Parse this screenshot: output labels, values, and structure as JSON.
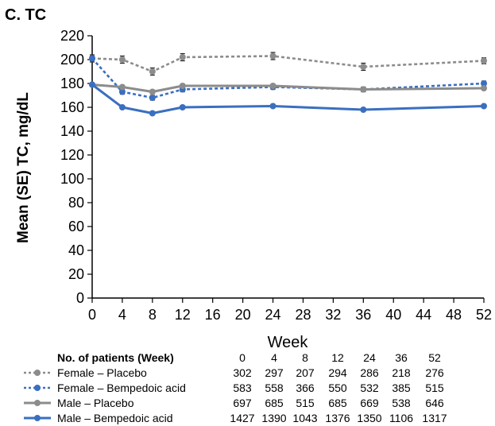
{
  "chart_data": {
    "type": "line",
    "title": "C. TC",
    "xlabel": "Week",
    "ylabel": "Mean (SE) TC, mg/dL",
    "xlim": [
      0,
      52
    ],
    "ylim": [
      0,
      220
    ],
    "xticks": [
      0,
      4,
      8,
      12,
      16,
      20,
      24,
      28,
      32,
      36,
      40,
      44,
      48,
      52
    ],
    "yticks": [
      0,
      20,
      40,
      60,
      80,
      100,
      120,
      140,
      160,
      180,
      200,
      220
    ],
    "grid": false,
    "series": [
      {
        "name": "Female – Placebo",
        "color": "#8c8c8c",
        "dash": "dotted",
        "x": [
          0,
          4,
          8,
          12,
          24,
          36,
          52
        ],
        "y": [
          201,
          200,
          190,
          202,
          203,
          194,
          199
        ],
        "se": [
          3,
          3,
          3,
          3,
          3,
          3,
          2.5
        ]
      },
      {
        "name": "Female – Bempedoic acid",
        "color": "#3a6fc0",
        "dash": "dotted",
        "x": [
          0,
          4,
          8,
          12,
          24,
          36,
          52
        ],
        "y": [
          201,
          173,
          168,
          175,
          177,
          175,
          180
        ],
        "se": [
          2,
          2,
          2,
          2,
          2,
          2,
          2
        ]
      },
      {
        "name": "Male – Placebo",
        "color": "#8c8c8c",
        "dash": "solid",
        "x": [
          0,
          4,
          8,
          12,
          24,
          36,
          52
        ],
        "y": [
          179,
          177,
          173,
          178,
          178,
          175,
          176
        ],
        "se": [
          1.5,
          1.5,
          1.5,
          1.5,
          1.5,
          1.5,
          1.5
        ]
      },
      {
        "name": "Male – Bempedoic acid",
        "color": "#3a6fc0",
        "dash": "solid",
        "x": [
          0,
          4,
          8,
          12,
          24,
          36,
          52
        ],
        "y": [
          179,
          160,
          155,
          160,
          161,
          158,
          161
        ],
        "se": [
          1,
          1,
          1,
          1,
          1,
          1,
          1
        ]
      }
    ],
    "patients_table": {
      "header": "No. of patients (Week)",
      "weeks": [
        "0",
        "4",
        "8",
        "12",
        "24",
        "36",
        "52"
      ],
      "rows": [
        {
          "label": "Female – Placebo",
          "values": [
            "302",
            "297",
            "207",
            "294",
            "286",
            "218",
            "276"
          ]
        },
        {
          "label": "Female – Bempedoic acid",
          "values": [
            "583",
            "558",
            "366",
            "550",
            "532",
            "385",
            "515"
          ]
        },
        {
          "label": "Male – Placebo",
          "values": [
            "697",
            "685",
            "515",
            "685",
            "669",
            "538",
            "646"
          ]
        },
        {
          "label": "Male – Bempedoic acid",
          "values": [
            "1427",
            "1390",
            "1043",
            "1376",
            "1350",
            "1106",
            "1317"
          ]
        }
      ]
    }
  }
}
